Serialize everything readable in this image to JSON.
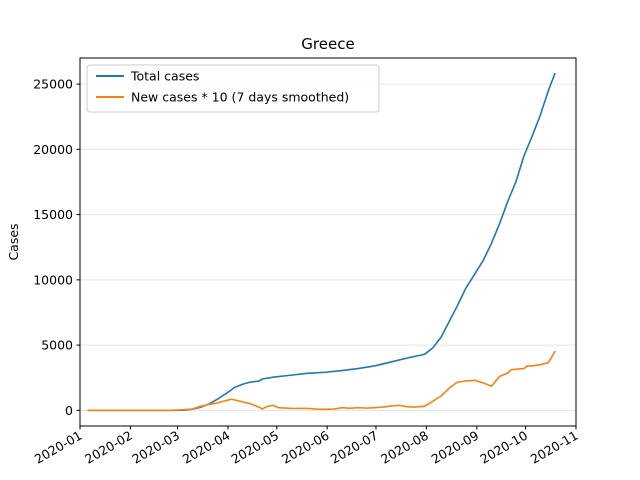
{
  "chart_data": {
    "type": "line",
    "title": "Greece",
    "xlabel": "",
    "ylabel": "Cases",
    "grid": "horizontal",
    "legend_position": "top-left",
    "xlim": [
      "2020-01-01",
      "2020-11-01"
    ],
    "ylim": [
      -1200,
      27000
    ],
    "x_tick_labels": [
      "2020-01",
      "2020-02",
      "2020-03",
      "2020-04",
      "2020-05",
      "2020-06",
      "2020-07",
      "2020-08",
      "2020-09",
      "2020-10",
      "2020-11"
    ],
    "y_ticks": [
      0,
      5000,
      10000,
      15000,
      20000,
      25000
    ],
    "series": [
      {
        "name": "Total cases",
        "color": "#1f77b4",
        "points": [
          [
            "2020-01-06",
            0
          ],
          [
            "2020-02-26",
            0
          ],
          [
            "2020-03-05",
            10
          ],
          [
            "2020-03-10",
            90
          ],
          [
            "2020-03-15",
            228
          ],
          [
            "2020-03-20",
            464
          ],
          [
            "2020-03-25",
            820
          ],
          [
            "2020-03-31",
            1300
          ],
          [
            "2020-04-05",
            1750
          ],
          [
            "2020-04-10",
            2000
          ],
          [
            "2020-04-15",
            2170
          ],
          [
            "2020-04-20",
            2240
          ],
          [
            "2020-04-22",
            2400
          ],
          [
            "2020-04-30",
            2560
          ],
          [
            "2020-05-10",
            2700
          ],
          [
            "2020-05-20",
            2840
          ],
          [
            "2020-05-31",
            2920
          ],
          [
            "2020-06-10",
            3050
          ],
          [
            "2020-06-20",
            3200
          ],
          [
            "2020-06-30",
            3400
          ],
          [
            "2020-07-10",
            3700
          ],
          [
            "2020-07-20",
            4000
          ],
          [
            "2020-07-31",
            4300
          ],
          [
            "2020-08-05",
            4800
          ],
          [
            "2020-08-10",
            5600
          ],
          [
            "2020-08-15",
            6800
          ],
          [
            "2020-08-20",
            8000
          ],
          [
            "2020-08-25",
            9300
          ],
          [
            "2020-08-31",
            10500
          ],
          [
            "2020-09-05",
            11500
          ],
          [
            "2020-09-10",
            12800
          ],
          [
            "2020-09-15",
            14300
          ],
          [
            "2020-09-20",
            16000
          ],
          [
            "2020-09-25",
            17500
          ],
          [
            "2020-09-30",
            19500
          ],
          [
            "2020-10-05",
            21000
          ],
          [
            "2020-10-10",
            22600
          ],
          [
            "2020-10-15",
            24500
          ],
          [
            "2020-10-19",
            25800
          ]
        ]
      },
      {
        "name": "New cases * 10 (7 days smoothed)",
        "color": "#ff7f0e",
        "points": [
          [
            "2020-01-06",
            0
          ],
          [
            "2020-02-26",
            0
          ],
          [
            "2020-03-05",
            50
          ],
          [
            "2020-03-10",
            100
          ],
          [
            "2020-03-15",
            300
          ],
          [
            "2020-03-20",
            450
          ],
          [
            "2020-03-25",
            550
          ],
          [
            "2020-03-31",
            750
          ],
          [
            "2020-04-03",
            850
          ],
          [
            "2020-04-05",
            800
          ],
          [
            "2020-04-10",
            650
          ],
          [
            "2020-04-15",
            500
          ],
          [
            "2020-04-20",
            250
          ],
          [
            "2020-04-22",
            100
          ],
          [
            "2020-04-25",
            300
          ],
          [
            "2020-04-29",
            380
          ],
          [
            "2020-05-02",
            200
          ],
          [
            "2020-05-10",
            150
          ],
          [
            "2020-05-20",
            150
          ],
          [
            "2020-05-25",
            100
          ],
          [
            "2020-05-31",
            80
          ],
          [
            "2020-06-05",
            100
          ],
          [
            "2020-06-10",
            200
          ],
          [
            "2020-06-15",
            160
          ],
          [
            "2020-06-20",
            200
          ],
          [
            "2020-06-25",
            170
          ],
          [
            "2020-06-30",
            200
          ],
          [
            "2020-07-05",
            250
          ],
          [
            "2020-07-10",
            330
          ],
          [
            "2020-07-15",
            380
          ],
          [
            "2020-07-20",
            280
          ],
          [
            "2020-07-25",
            250
          ],
          [
            "2020-07-31",
            320
          ],
          [
            "2020-08-05",
            700
          ],
          [
            "2020-08-10",
            1100
          ],
          [
            "2020-08-15",
            1700
          ],
          [
            "2020-08-20",
            2150
          ],
          [
            "2020-08-25",
            2250
          ],
          [
            "2020-08-31",
            2300
          ],
          [
            "2020-09-05",
            2100
          ],
          [
            "2020-09-10",
            1850
          ],
          [
            "2020-09-15",
            2600
          ],
          [
            "2020-09-20",
            2850
          ],
          [
            "2020-09-22",
            3100
          ],
          [
            "2020-09-25",
            3150
          ],
          [
            "2020-09-30",
            3200
          ],
          [
            "2020-10-02",
            3400
          ],
          [
            "2020-10-05",
            3400
          ],
          [
            "2020-10-10",
            3500
          ],
          [
            "2020-10-15",
            3650
          ],
          [
            "2020-10-19",
            4500
          ]
        ]
      }
    ]
  }
}
